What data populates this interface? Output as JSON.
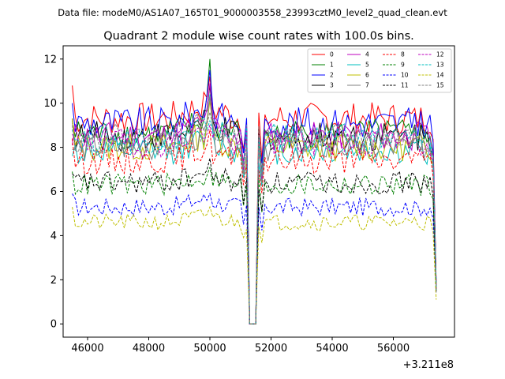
{
  "chart_data": {
    "type": "line",
    "suptitle": "Data file: modeM0/AS1A07_165T01_9000003558_23993cztM0_level2_quad_clean.evt",
    "title": "Quadrant 2 module wise count rates with 100.0s bins.",
    "xlabel": "",
    "ylabel": "",
    "x_offset_label": "+3.211e8",
    "xlim": [
      45200,
      58000
    ],
    "ylim": [
      -0.6,
      12.6
    ],
    "x_ticks": [
      46000,
      48000,
      50000,
      52000,
      54000,
      56000
    ],
    "x_tick_labels": [
      "46000",
      "48000",
      "50000",
      "52000",
      "54000",
      "56000"
    ],
    "y_ticks": [
      0,
      2,
      4,
      6,
      8,
      10,
      12
    ],
    "y_tick_labels": [
      "0",
      "2",
      "4",
      "6",
      "8",
      "10",
      "12"
    ],
    "legend_position": "top-right",
    "x_start": 45500,
    "x_step": 100,
    "gap": [
      51200,
      51600
    ],
    "x_end": 57400,
    "series": [
      {
        "name": "0",
        "color": "#ff0000",
        "dash": "solid",
        "level": 9.3,
        "start": 10.8,
        "peak": 11.2,
        "end": 1.9
      },
      {
        "name": "1",
        "color": "#008000",
        "dash": "solid",
        "level": 8.6,
        "start": 9.2,
        "peak": 12.0,
        "end": 1.8
      },
      {
        "name": "2",
        "color": "#0000ff",
        "dash": "solid",
        "level": 9.1,
        "start": 10.0,
        "peak": 11.5,
        "end": 1.8
      },
      {
        "name": "3",
        "color": "#000000",
        "dash": "solid",
        "level": 8.5,
        "start": 9.3,
        "peak": 10.8,
        "end": 1.7
      },
      {
        "name": "4",
        "color": "#bf00bf",
        "dash": "solid",
        "level": 8.5,
        "start": 8.1,
        "peak": 10.9,
        "end": 1.8
      },
      {
        "name": "5",
        "color": "#00bfbf",
        "dash": "solid",
        "level": 7.8,
        "start": 7.6,
        "peak": 10.4,
        "end": 1.6
      },
      {
        "name": "6",
        "color": "#bfbf00",
        "dash": "solid",
        "level": 8.0,
        "start": 9.3,
        "peak": 10.1,
        "end": 1.6
      },
      {
        "name": "7",
        "color": "#808080",
        "dash": "solid",
        "level": 8.0,
        "start": 7.9,
        "peak": 10.3,
        "end": 1.7
      },
      {
        "name": "8",
        "color": "#ff0000",
        "dash": "dashed",
        "level": 7.4,
        "start": 8.4,
        "peak": 8.8,
        "end": 1.6
      },
      {
        "name": "9",
        "color": "#008000",
        "dash": "dashed",
        "level": 6.3,
        "start": 6.9,
        "peak": 7.1,
        "end": 1.5
      },
      {
        "name": "10",
        "color": "#0000ff",
        "dash": "dashed",
        "level": 5.3,
        "start": 5.9,
        "peak": 5.9,
        "end": 1.4
      },
      {
        "name": "11",
        "color": "#000000",
        "dash": "dashed",
        "level": 6.4,
        "start": 6.8,
        "peak": 7.5,
        "end": 1.5
      },
      {
        "name": "12",
        "color": "#bf00bf",
        "dash": "dashed",
        "level": 8.2,
        "start": 8.6,
        "peak": 9.0,
        "end": 1.6
      },
      {
        "name": "13",
        "color": "#00bfbf",
        "dash": "dashed",
        "level": 8.4,
        "start": 8.8,
        "peak": 9.2,
        "end": 1.6
      },
      {
        "name": "14",
        "color": "#bfbf00",
        "dash": "dashed",
        "level": 4.6,
        "start": 5.3,
        "peak": 5.3,
        "end": 1.1
      },
      {
        "name": "15",
        "color": "#808080",
        "dash": "dashed",
        "level": 8.4,
        "start": 9.0,
        "peak": 9.6,
        "end": 1.7
      }
    ]
  }
}
